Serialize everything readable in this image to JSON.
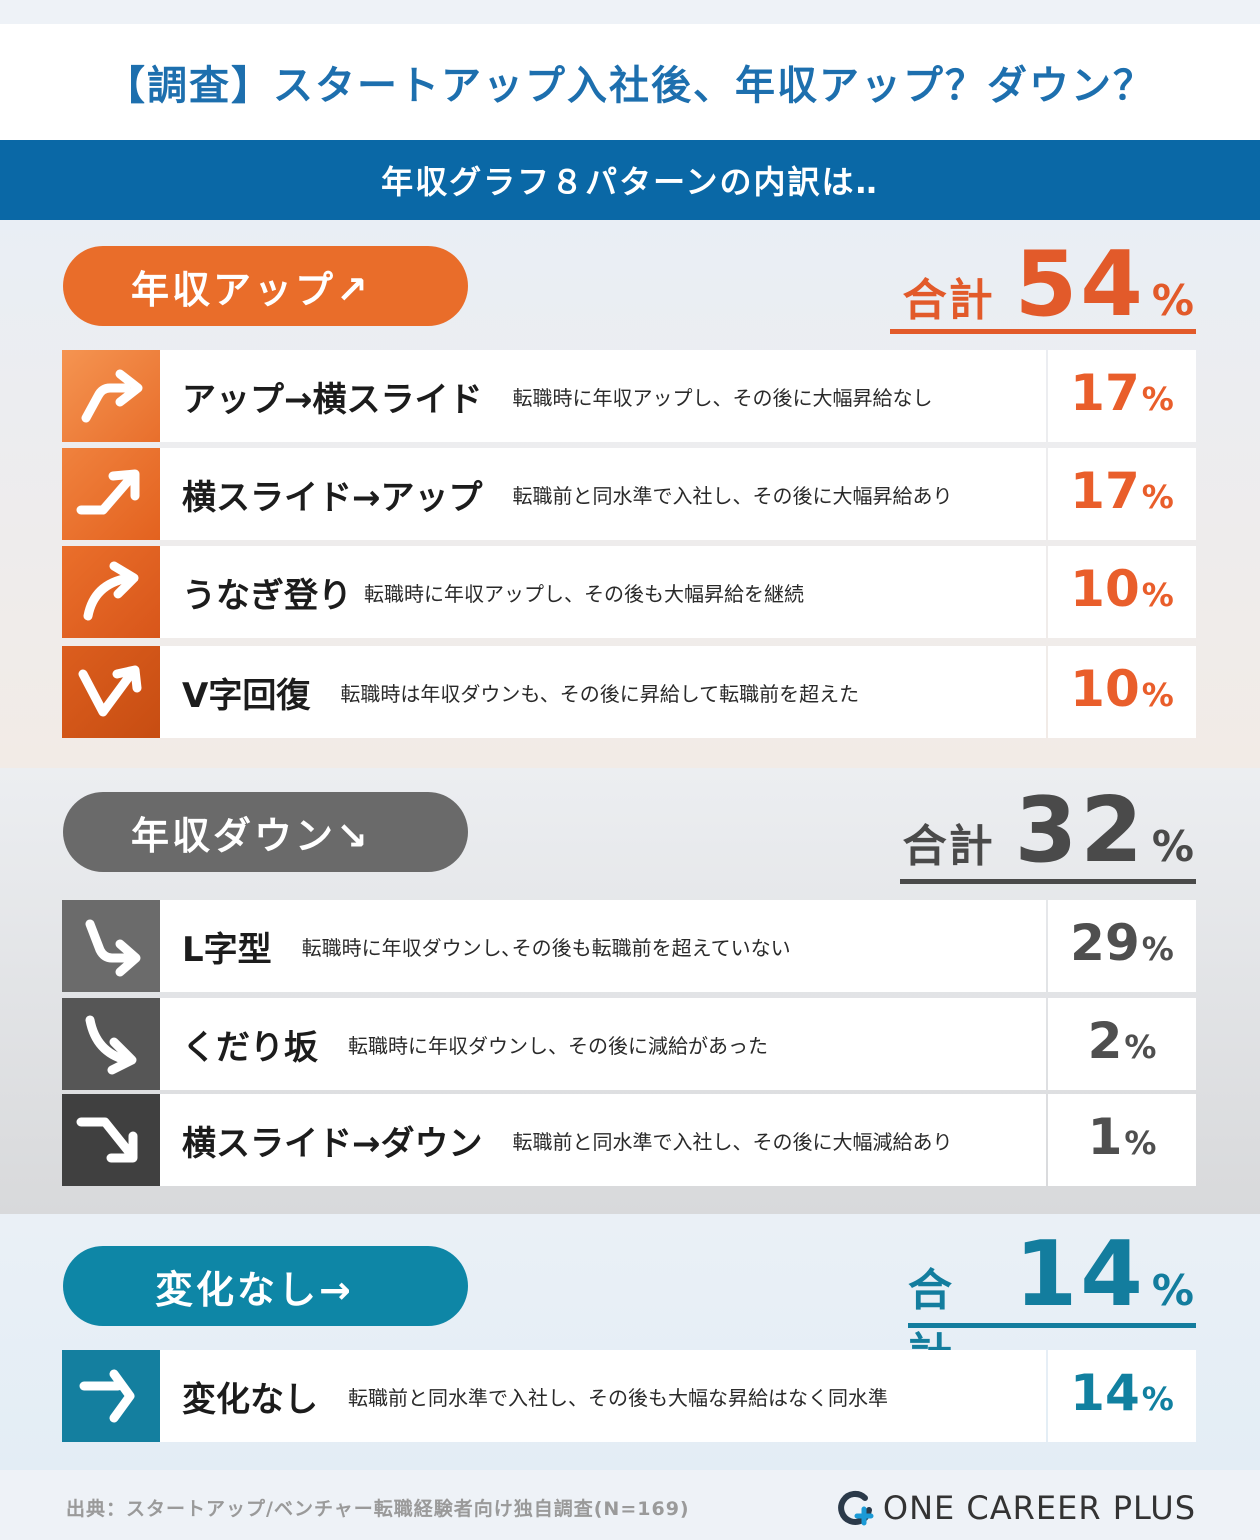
{
  "header": {
    "title": "【調査】スタートアップ入社後、年収アップ？ダウン？",
    "subtitle": "年収グラフ８パターンの内訳は‥"
  },
  "colors": {
    "up": "#e96d2a",
    "down": "#6a6a6a",
    "none": "#0e86a6",
    "banner": "#0a68a6"
  },
  "sections": {
    "up": {
      "label": "年収アップ↗",
      "total_label": "合計",
      "total_value": "54",
      "total_unit": "%",
      "items": [
        {
          "icon": "arrow-up-then-flat-icon",
          "name": "アップ→横スライド",
          "desc": "転職時に年収アップし、その後に大幅昇給なし",
          "value": "17",
          "unit": "%"
        },
        {
          "icon": "arrow-flat-then-up-icon",
          "name": "横スライド→アップ",
          "desc": "転職前と同水準で入社し、その後に大幅昇給あり",
          "value": "17",
          "unit": "%"
        },
        {
          "icon": "arrow-curve-up-icon",
          "name": "うなぎ登り",
          "desc": "転職時に年収アップし、その後も大幅昇給を継続",
          "value": "10",
          "unit": "%"
        },
        {
          "icon": "arrow-v-shape-icon",
          "name": "V字回復",
          "desc": "転職時は年収ダウンも、その後に昇給して転職前を超えた",
          "value": "10",
          "unit": "%"
        }
      ]
    },
    "down": {
      "label": "年収ダウン↘",
      "total_label": "合計",
      "total_value": "32",
      "total_unit": "%",
      "items": [
        {
          "icon": "arrow-l-shape-icon",
          "name": "L字型",
          "desc": "転職時に年収ダウンし､その後も転職前を超えていない",
          "value": "29",
          "unit": "%"
        },
        {
          "icon": "arrow-curve-down-icon",
          "name": "くだり坂",
          "desc": "転職時に年収ダウンし、その後に減給があった",
          "value": "2",
          "unit": "%"
        },
        {
          "icon": "arrow-flat-then-down-icon",
          "name": "横スライド→ダウン",
          "desc": "転職前と同水準で入社し、その後に大幅減給あり",
          "value": "1",
          "unit": "%"
        }
      ]
    },
    "none": {
      "label": "変化なし→",
      "total_label": "合計",
      "total_value": "14",
      "total_unit": "%",
      "items": [
        {
          "icon": "arrow-flat-icon",
          "name": "変化なし",
          "desc": "転職前と同水準で入社し、その後も大幅な昇給はなく同水準",
          "value": "14",
          "unit": "%"
        }
      ]
    }
  },
  "footer": {
    "source": "出典：スタートアップ/ベンチャー転職経験者向け独自調査(N=169)",
    "logo_text": "ONE CAREER PLUS"
  }
}
